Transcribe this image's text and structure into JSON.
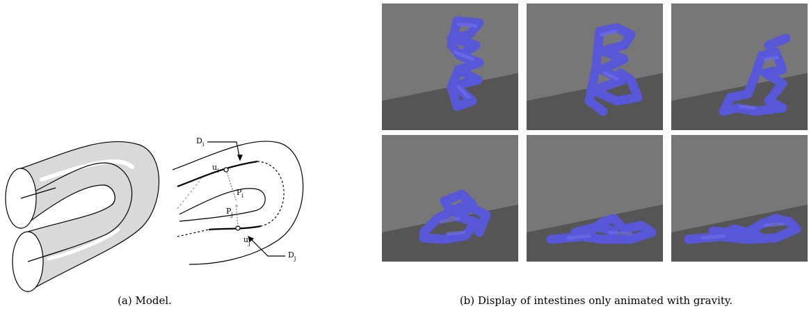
{
  "model_labels": [
    {
      "base": "D",
      "sub": "i"
    },
    {
      "base": "u",
      "sub": "i"
    },
    {
      "base": "P",
      "sub": "i"
    },
    {
      "base": "P",
      "sub": "j"
    },
    {
      "base": "u",
      "sub": "j"
    },
    {
      "base": "D",
      "sub": "j"
    }
  ],
  "captions": {
    "a": "(a) Model.",
    "b": "(b) Display of intestines only animated with gravity."
  }
}
